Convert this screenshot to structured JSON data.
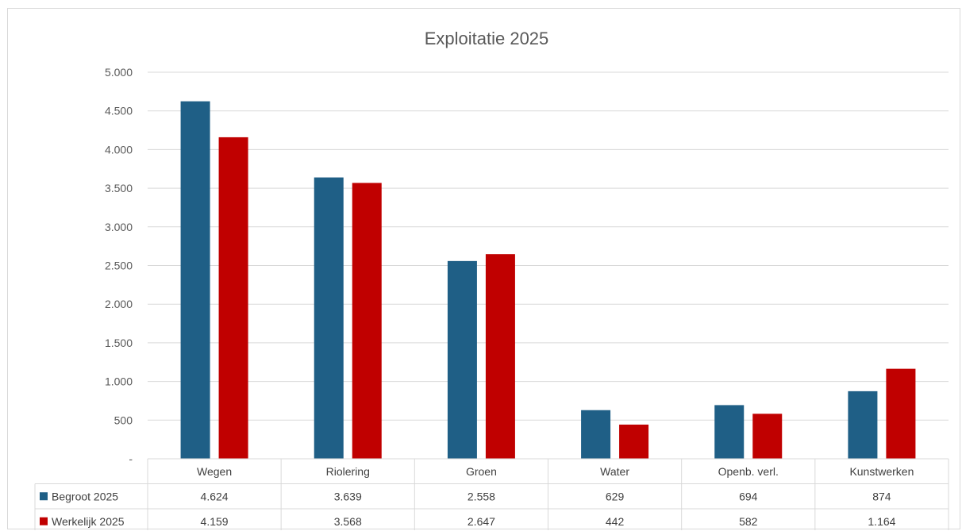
{
  "chart_data": {
    "type": "bar",
    "title": "Exploitatie 2025",
    "categories": [
      "Wegen",
      "Riolering",
      "Groen",
      "Water",
      "Openb. verl.",
      "Kunstwerken"
    ],
    "series": [
      {
        "name": "Begroot 2025",
        "color": "#1f5f86",
        "values": [
          4624,
          3639,
          2558,
          629,
          694,
          874
        ],
        "labels": [
          "4.624",
          "3.639",
          "2.558",
          "629",
          "694",
          "874"
        ]
      },
      {
        "name": "Werkelijk 2025",
        "color": "#c00000",
        "values": [
          4159,
          3568,
          2647,
          442,
          582,
          1164
        ],
        "labels": [
          "4.159",
          "3.568",
          "2.647",
          "442",
          "582",
          "1.164"
        ]
      }
    ],
    "ylim": [
      0,
      5000
    ],
    "yticks": [
      0,
      500,
      1000,
      1500,
      2000,
      2500,
      3000,
      3500,
      4000,
      4500,
      5000
    ],
    "ytick_labels": [
      "-",
      "500",
      "1.000",
      "1.500",
      "2.000",
      "2.500",
      "3.000",
      "3.500",
      "4.000",
      "4.500",
      "5.000"
    ],
    "grid": true,
    "legend": "data-table"
  }
}
